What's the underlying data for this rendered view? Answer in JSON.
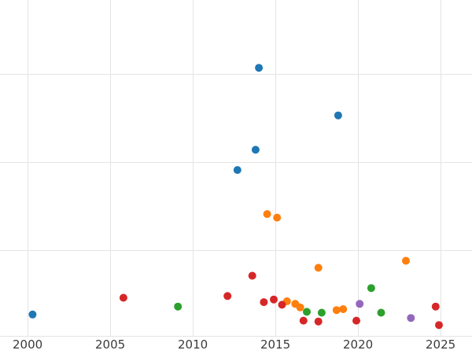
{
  "chart_data": {
    "type": "scatter",
    "title": "",
    "xlabel": "",
    "ylabel": "",
    "xlim": [
      1998.33,
      2026.9
    ],
    "ylim": [
      0,
      3.84
    ],
    "x_ticks": [
      2000,
      2005,
      2010,
      2015,
      2020,
      2025
    ],
    "y_gridlines": [
      1,
      2,
      3
    ],
    "grid": true,
    "grid_color": "#e4e4e4",
    "tick_label_color": "#3b3b3b",
    "marker_radius": 5,
    "series": [
      {
        "name": "blue",
        "color": "#1f77b4",
        "points": [
          [
            2000.3,
            0.27
          ],
          [
            2012.7,
            1.91
          ],
          [
            2013.8,
            2.14
          ],
          [
            2014.0,
            3.07
          ],
          [
            2018.8,
            2.53
          ]
        ]
      },
      {
        "name": "orange",
        "color": "#ff7f0e",
        "points": [
          [
            2014.5,
            1.41
          ],
          [
            2015.1,
            1.37
          ],
          [
            2015.7,
            0.42
          ],
          [
            2016.2,
            0.39
          ],
          [
            2016.5,
            0.35
          ],
          [
            2017.6,
            0.8
          ],
          [
            2018.7,
            0.32
          ],
          [
            2019.1,
            0.33
          ],
          [
            2022.9,
            0.88
          ]
        ]
      },
      {
        "name": "green",
        "color": "#2ca02c",
        "points": [
          [
            2009.1,
            0.36
          ],
          [
            2016.9,
            0.3
          ],
          [
            2017.8,
            0.29
          ],
          [
            2020.8,
            0.57
          ],
          [
            2021.4,
            0.29
          ]
        ]
      },
      {
        "name": "red",
        "color": "#d62728",
        "points": [
          [
            2005.8,
            0.46
          ],
          [
            2012.1,
            0.48
          ],
          [
            2013.6,
            0.71
          ],
          [
            2014.3,
            0.41
          ],
          [
            2014.9,
            0.44
          ],
          [
            2015.4,
            0.38
          ],
          [
            2016.7,
            0.2
          ],
          [
            2017.6,
            0.19
          ],
          [
            2019.9,
            0.2
          ],
          [
            2024.7,
            0.36
          ],
          [
            2024.9,
            0.15
          ]
        ]
      },
      {
        "name": "purple",
        "color": "#9467bd",
        "points": [
          [
            2020.1,
            0.39
          ],
          [
            2023.2,
            0.23
          ]
        ]
      }
    ]
  }
}
